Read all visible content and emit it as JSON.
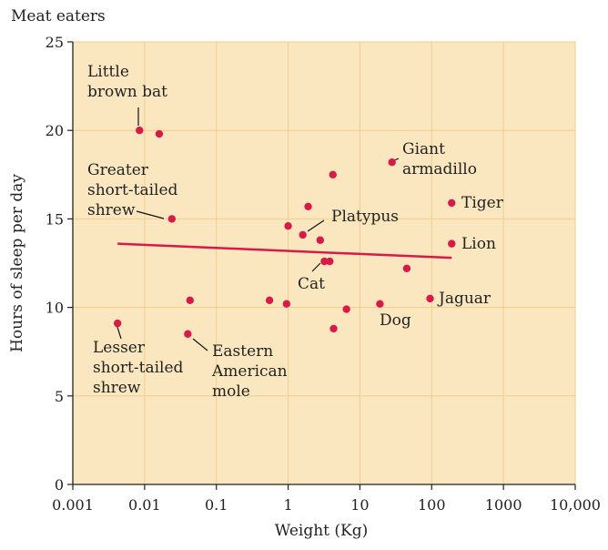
{
  "chart_data": {
    "type": "scatter",
    "title": "Meat eaters",
    "xlabel": "Weight (Kg)",
    "ylabel": "Hours of sleep per day",
    "x_scale": "log",
    "xlim": [
      0.001,
      10000
    ],
    "ylim": [
      0,
      25
    ],
    "x_ticks": [
      {
        "value": 0.001,
        "label": "0.001"
      },
      {
        "value": 0.01,
        "label": "0.01"
      },
      {
        "value": 0.1,
        "label": "0.1"
      },
      {
        "value": 1,
        "label": "1"
      },
      {
        "value": 10,
        "label": "10"
      },
      {
        "value": 100,
        "label": "100"
      },
      {
        "value": 1000,
        "label": "1000"
      },
      {
        "value": 10000,
        "label": "10,000"
      }
    ],
    "y_ticks": [
      {
        "value": 0,
        "label": "0"
      },
      {
        "value": 5,
        "label": "5"
      },
      {
        "value": 10,
        "label": "10"
      },
      {
        "value": 15,
        "label": "15"
      },
      {
        "value": 20,
        "label": "20"
      },
      {
        "value": 25,
        "label": "25"
      }
    ],
    "grid": true,
    "points": [
      {
        "x": 0.0085,
        "y": 20.0
      },
      {
        "x": 0.016,
        "y": 19.8
      },
      {
        "x": 0.024,
        "y": 15.0
      },
      {
        "x": 0.0042,
        "y": 9.1
      },
      {
        "x": 0.043,
        "y": 10.4
      },
      {
        "x": 0.04,
        "y": 8.5
      },
      {
        "x": 0.55,
        "y": 10.4
      },
      {
        "x": 0.95,
        "y": 10.2
      },
      {
        "x": 1.0,
        "y": 14.6
      },
      {
        "x": 1.6,
        "y": 14.1
      },
      {
        "x": 1.9,
        "y": 15.7
      },
      {
        "x": 2.8,
        "y": 13.8
      },
      {
        "x": 3.2,
        "y": 12.6
      },
      {
        "x": 3.8,
        "y": 12.6
      },
      {
        "x": 4.2,
        "y": 17.5
      },
      {
        "x": 4.3,
        "y": 8.8
      },
      {
        "x": 6.5,
        "y": 9.9
      },
      {
        "x": 19,
        "y": 10.2
      },
      {
        "x": 28,
        "y": 18.2
      },
      {
        "x": 45,
        "y": 12.2
      },
      {
        "x": 95,
        "y": 10.5
      },
      {
        "x": 190,
        "y": 15.9
      },
      {
        "x": 190,
        "y": 13.6
      }
    ],
    "trend_line": {
      "x": [
        0.0042,
        190
      ],
      "y": [
        13.6,
        12.8
      ]
    },
    "colors": {
      "background": "#fbe7bf",
      "grid": "#f0cd8c",
      "point": "#d71a47",
      "trend": "#d71a47"
    },
    "annotations": [
      {
        "lines": [
          "Little",
          "brown bat"
        ],
        "anchor_x": 0.0085,
        "anchor_y": 20.0
      },
      {
        "lines": [
          "Greater",
          "short-tailed",
          "shrew"
        ],
        "anchor_x": 0.024,
        "anchor_y": 15.0
      },
      {
        "lines": [
          "Lesser",
          "short-tailed",
          "shrew"
        ],
        "anchor_x": 0.0042,
        "anchor_y": 9.1
      },
      {
        "lines": [
          "Eastern",
          "American",
          "mole"
        ],
        "anchor_x": 0.04,
        "anchor_y": 8.5
      },
      {
        "lines": [
          "Giant",
          "armadillo"
        ],
        "anchor_x": 28,
        "anchor_y": 18.2
      },
      {
        "lines": [
          "Platypus"
        ],
        "anchor_x": 1.6,
        "anchor_y": 14.1
      },
      {
        "lines": [
          "Tiger"
        ],
        "anchor_x": 190,
        "anchor_y": 15.9
      },
      {
        "lines": [
          "Lion"
        ],
        "anchor_x": 190,
        "anchor_y": 13.6
      },
      {
        "lines": [
          "Cat"
        ],
        "anchor_x": 3.5,
        "anchor_y": 12.6
      },
      {
        "lines": [
          "Jaguar"
        ],
        "anchor_x": 95,
        "anchor_y": 10.5
      },
      {
        "lines": [
          "Dog"
        ],
        "anchor_x": 19,
        "anchor_y": 10.2
      }
    ]
  }
}
